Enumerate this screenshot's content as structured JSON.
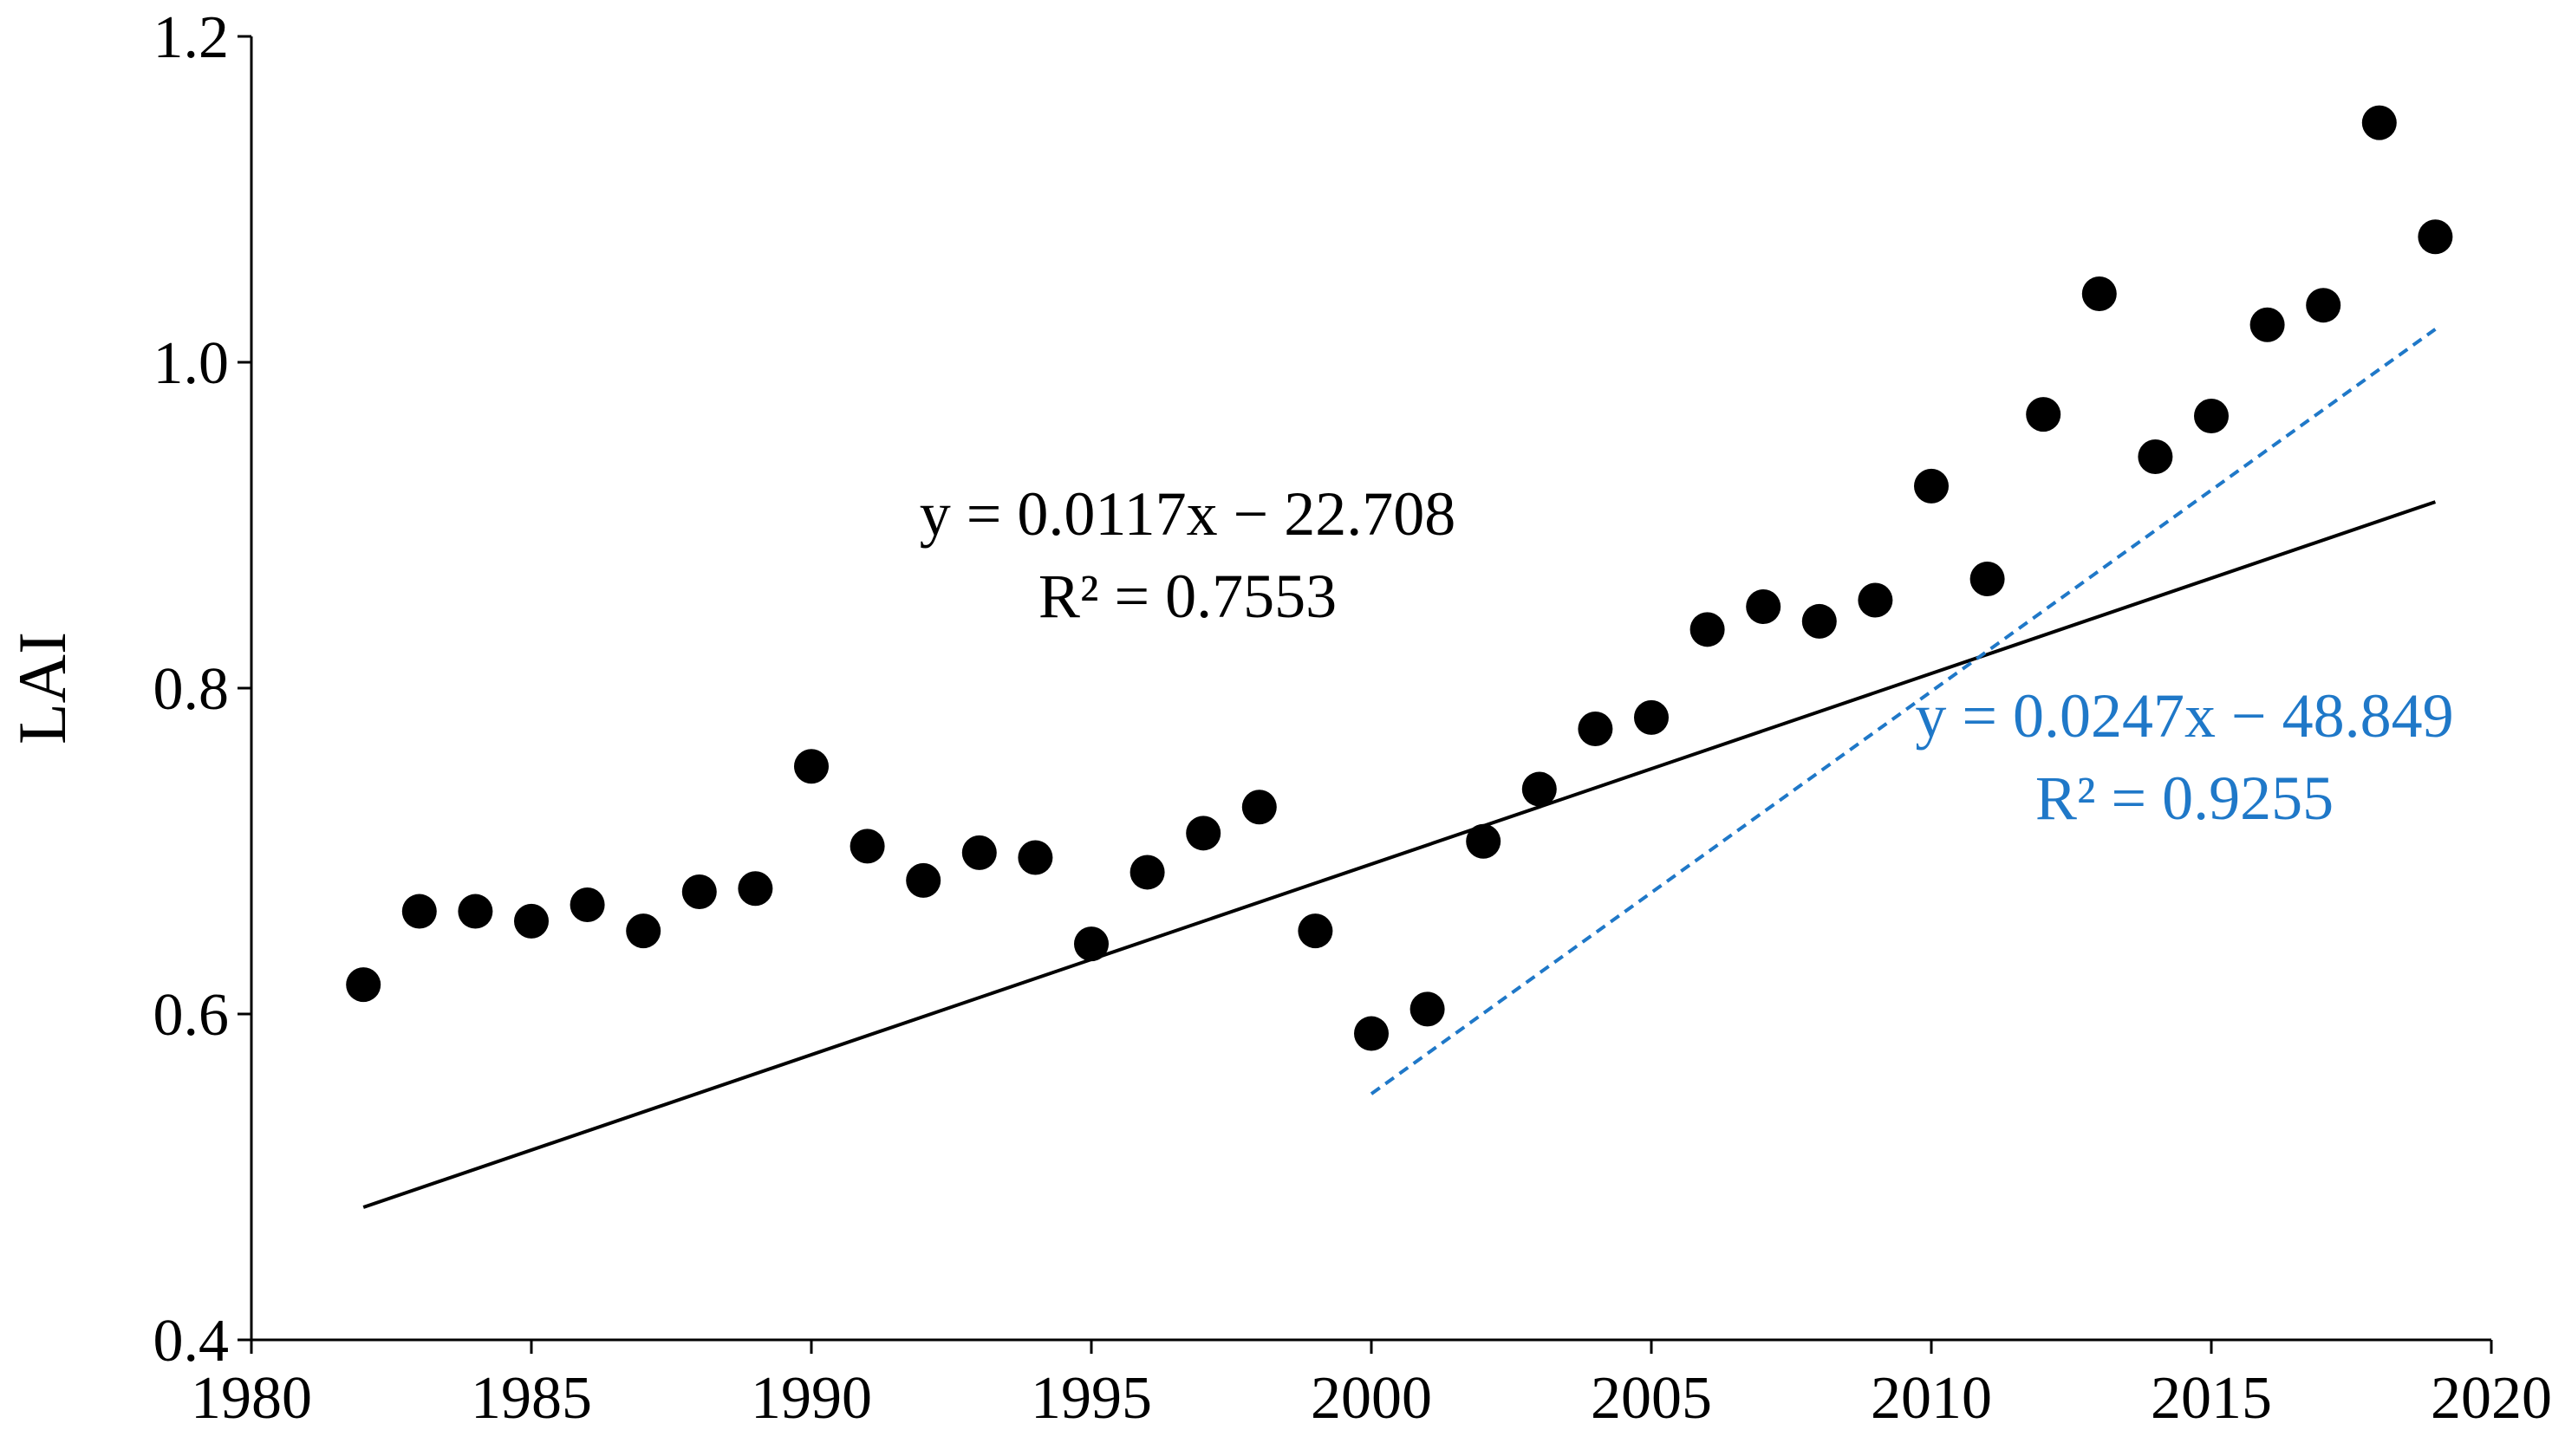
{
  "chart_data": {
    "type": "scatter",
    "title": "",
    "xlabel": "",
    "ylabel": "LAI",
    "xlim": [
      1980,
      2020
    ],
    "ylim": [
      0.4,
      1.2
    ],
    "x_ticks": [
      "1980",
      "1985",
      "1990",
      "1995",
      "2000",
      "2005",
      "2010",
      "2015",
      "2020"
    ],
    "y_ticks": [
      "0.4",
      "0.6",
      "0.8",
      "1.0",
      "1.2"
    ],
    "grid": false,
    "legend": "none",
    "series": [
      {
        "x": [
          1982,
          1983,
          1984,
          1985,
          1986,
          1987,
          1988,
          1989,
          1990,
          1991,
          1992,
          1993,
          1994,
          1995,
          1996,
          1997,
          1998,
          1999,
          2000,
          2001,
          2002,
          2003,
          2004,
          2005,
          2006,
          2007,
          2008,
          2009,
          2010,
          2011,
          2012,
          2013,
          2014,
          2015,
          2016,
          2017,
          2018,
          2019
        ],
        "y": [
          0.618,
          0.663,
          0.663,
          0.657,
          0.667,
          0.651,
          0.675,
          0.677,
          0.752,
          0.703,
          0.682,
          0.699,
          0.696,
          0.643,
          0.687,
          0.711,
          0.727,
          0.651,
          0.588,
          0.603,
          0.706,
          0.738,
          0.775,
          0.782,
          0.836,
          0.85,
          0.841,
          0.854,
          0.924,
          0.867,
          0.968,
          1.042,
          0.942,
          0.967,
          1.023,
          1.035,
          1.147,
          1.077
        ],
        "color": "#000000"
      }
    ],
    "trendlines": [
      {
        "equation": "y = 0.0117x − 22.708",
        "r2_label": "R² = 0.7553",
        "slope": 0.0117,
        "intercept": -22.708,
        "x_range": [
          1982,
          2019
        ],
        "color": "#000000",
        "style": "solid"
      },
      {
        "equation": "y = 0.0247x − 48.849",
        "r2_label": "R² = 0.9255",
        "slope": 0.0247,
        "intercept": -48.849,
        "x_range": [
          2000,
          2019
        ],
        "color": "#1f78c8",
        "style": "dashed"
      }
    ]
  }
}
